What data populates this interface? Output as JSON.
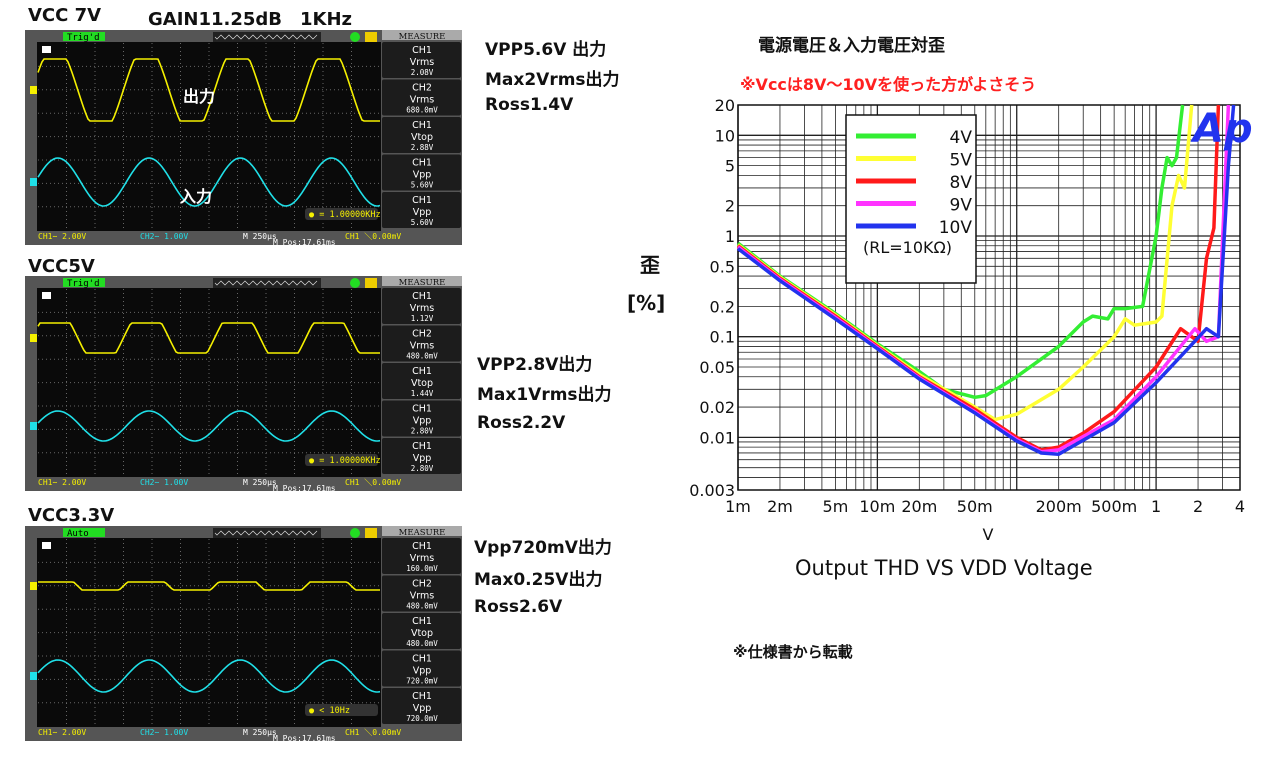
{
  "scopes": [
    {
      "heading": "VCC 7V",
      "heading2": "GAIN11.25dB　1KHz",
      "trigger": "Trig'd",
      "freq": "= 1.00000KHz",
      "out_label": "出力",
      "in_label": "入力",
      "measure_title": "MEASURE",
      "measures": [
        {
          "ch": "CH1",
          "type": "Vrms",
          "val": "2.08V"
        },
        {
          "ch": "CH2",
          "type": "Vrms",
          "val": "680.0mV"
        },
        {
          "ch": "CH1",
          "type": "Vtop",
          "val": "2.88V"
        },
        {
          "ch": "CH1",
          "type": "Vpp",
          "val": "5.60V"
        },
        {
          "ch": "CH1",
          "type": "Vpp",
          "val": "5.60V"
        }
      ],
      "ch1": "CH1∼ 2.00V",
      "ch2": "CH2∼ 1.00V",
      "time": "M 250μs",
      "mpos": "M Pos:17.61ms",
      "trig": "CH1 ＼0.00mV",
      "notes": [
        "VPP5.6V 出力",
        "Max2Vrms出力",
        "Ross1.4V"
      ]
    },
    {
      "heading": "VCC5V",
      "trigger": "Trig'd",
      "freq": "= 1.00000KHz",
      "measure_title": "MEASURE",
      "measures": [
        {
          "ch": "CH1",
          "type": "Vrms",
          "val": "1.12V"
        },
        {
          "ch": "CH2",
          "type": "Vrms",
          "val": "480.0mV"
        },
        {
          "ch": "CH1",
          "type": "Vtop",
          "val": "1.44V"
        },
        {
          "ch": "CH1",
          "type": "Vpp",
          "val": "2.80V"
        },
        {
          "ch": "CH1",
          "type": "Vpp",
          "val": "2.80V"
        }
      ],
      "ch1": "CH1∼ 2.00V",
      "ch2": "CH2∼ 1.00V",
      "time": "M 250μs",
      "mpos": "M Pos:17.61ms",
      "trig": "CH1 ＼0.00mV",
      "notes": [
        "VPP2.8V出力",
        "Max1Vrms出力",
        "Ross2.2V"
      ]
    },
    {
      "heading": "VCC3.3V",
      "trigger": "Auto",
      "freq": "< 10Hz",
      "measure_title": "MEASURE",
      "measures": [
        {
          "ch": "CH1",
          "type": "Vrms",
          "val": "160.0mV"
        },
        {
          "ch": "CH2",
          "type": "Vrms",
          "val": "480.0mV"
        },
        {
          "ch": "CH1",
          "type": "Vtop",
          "val": "480.0mV"
        },
        {
          "ch": "CH1",
          "type": "Vpp",
          "val": "720.0mV"
        },
        {
          "ch": "CH1",
          "type": "Vpp",
          "val": "720.0mV"
        }
      ],
      "ch1": "CH1∼ 2.00V",
      "ch2": "CH2∼ 1.00V",
      "time": "M 250μs",
      "mpos": "M Pos:17.61ms",
      "trig": "CH1 ＼0.00mV",
      "notes": [
        "Vpp720mV出力",
        "Max0.25V出力",
        "Ross2.6V"
      ]
    }
  ],
  "colors": {
    "ch1": "#f5f000",
    "ch2": "#20e0e8",
    "scope_bg": "#0a0a0a",
    "note_red": "#ff2020"
  },
  "chart_data": {
    "type": "line",
    "title": "電源電圧＆入力電圧対歪",
    "note": "※Vccは8V〜10Vを使った方がよさそう",
    "subtitle": "Output THD VS VDD Voltage",
    "xlabel": "V",
    "ylabel": "歪",
    "ylabel_unit": "[%]",
    "x_scale": "log",
    "y_scale": "log",
    "xlim": [
      0.001,
      4
    ],
    "ylim": [
      0.003,
      20
    ],
    "grid": true,
    "legend_placement": "top-left",
    "legend_note": "(RL=10KΩ)",
    "logo": "Ap",
    "source": "※仕様書から転載",
    "x_ticks": [
      {
        "v": 0.001,
        "t": "1m"
      },
      {
        "v": 0.002,
        "t": "2m"
      },
      {
        "v": 0.005,
        "t": "5m"
      },
      {
        "v": 0.01,
        "t": "10m"
      },
      {
        "v": 0.02,
        "t": "20m"
      },
      {
        "v": 0.05,
        "t": "50m"
      },
      {
        "v": 0.2,
        "t": "200m"
      },
      {
        "v": 0.5,
        "t": "500m"
      },
      {
        "v": 1,
        "t": "1"
      },
      {
        "v": 2,
        "t": "2"
      },
      {
        "v": 4,
        "t": "4"
      }
    ],
    "y_ticks": [
      {
        "v": 20,
        "t": "20"
      },
      {
        "v": 10,
        "t": "10"
      },
      {
        "v": 5,
        "t": "5"
      },
      {
        "v": 2,
        "t": "2"
      },
      {
        "v": 1,
        "t": "1"
      },
      {
        "v": 0.5,
        "t": "0.5"
      },
      {
        "v": 0.2,
        "t": "0.2"
      },
      {
        "v": 0.1,
        "t": "0.1"
      },
      {
        "v": 0.05,
        "t": "0.05"
      },
      {
        "v": 0.02,
        "t": "0.02"
      },
      {
        "v": 0.01,
        "t": "0.01"
      },
      {
        "v": 0.003,
        "t": "0.003"
      }
    ],
    "series": [
      {
        "name": "4V",
        "color": "#33ee33",
        "points": [
          [
            0.001,
            0.85
          ],
          [
            0.002,
            0.4
          ],
          [
            0.005,
            0.17
          ],
          [
            0.01,
            0.085
          ],
          [
            0.02,
            0.045
          ],
          [
            0.03,
            0.03
          ],
          [
            0.05,
            0.025
          ],
          [
            0.06,
            0.026
          ],
          [
            0.1,
            0.04
          ],
          [
            0.2,
            0.08
          ],
          [
            0.3,
            0.14
          ],
          [
            0.35,
            0.16
          ],
          [
            0.45,
            0.15
          ],
          [
            0.5,
            0.19
          ],
          [
            0.6,
            0.19
          ],
          [
            0.8,
            0.2
          ],
          [
            1.0,
            1.0
          ],
          [
            1.1,
            3
          ],
          [
            1.2,
            6
          ],
          [
            1.3,
            5
          ],
          [
            1.4,
            6
          ],
          [
            1.55,
            20
          ]
        ]
      },
      {
        "name": "5V",
        "color": "#ffff33",
        "points": [
          [
            0.001,
            0.82
          ],
          [
            0.002,
            0.39
          ],
          [
            0.005,
            0.165
          ],
          [
            0.01,
            0.082
          ],
          [
            0.02,
            0.042
          ],
          [
            0.05,
            0.02
          ],
          [
            0.07,
            0.015
          ],
          [
            0.1,
            0.017
          ],
          [
            0.2,
            0.03
          ],
          [
            0.3,
            0.05
          ],
          [
            0.5,
            0.1
          ],
          [
            0.6,
            0.15
          ],
          [
            0.7,
            0.13
          ],
          [
            1.0,
            0.14
          ],
          [
            1.1,
            0.16
          ],
          [
            1.3,
            2
          ],
          [
            1.45,
            4
          ],
          [
            1.6,
            3
          ],
          [
            1.8,
            20
          ]
        ]
      },
      {
        "name": "8V",
        "color": "#ff1a1a",
        "points": [
          [
            0.001,
            0.8
          ],
          [
            0.002,
            0.38
          ],
          [
            0.005,
            0.16
          ],
          [
            0.01,
            0.08
          ],
          [
            0.02,
            0.04
          ],
          [
            0.05,
            0.019
          ],
          [
            0.1,
            0.01
          ],
          [
            0.15,
            0.0075
          ],
          [
            0.2,
            0.008
          ],
          [
            0.3,
            0.011
          ],
          [
            0.5,
            0.018
          ],
          [
            1,
            0.05
          ],
          [
            1.5,
            0.12
          ],
          [
            2,
            0.09
          ],
          [
            2.3,
            0.6
          ],
          [
            2.6,
            1.2
          ],
          [
            2.8,
            20
          ]
        ]
      },
      {
        "name": "9V",
        "color": "#ff33ff",
        "points": [
          [
            0.001,
            0.78
          ],
          [
            0.002,
            0.37
          ],
          [
            0.005,
            0.155
          ],
          [
            0.01,
            0.078
          ],
          [
            0.02,
            0.039
          ],
          [
            0.05,
            0.018
          ],
          [
            0.1,
            0.0095
          ],
          [
            0.15,
            0.0072
          ],
          [
            0.2,
            0.0075
          ],
          [
            0.5,
            0.015
          ],
          [
            1,
            0.04
          ],
          [
            1.9,
            0.12
          ],
          [
            2.3,
            0.09
          ],
          [
            2.8,
            0.1
          ],
          [
            3.3,
            20
          ]
        ]
      },
      {
        "name": "10V",
        "color": "#2233ee",
        "points": [
          [
            0.001,
            0.75
          ],
          [
            0.002,
            0.36
          ],
          [
            0.005,
            0.15
          ],
          [
            0.01,
            0.076
          ],
          [
            0.02,
            0.038
          ],
          [
            0.05,
            0.0175
          ],
          [
            0.1,
            0.0092
          ],
          [
            0.15,
            0.007
          ],
          [
            0.2,
            0.0068
          ],
          [
            0.5,
            0.014
          ],
          [
            1,
            0.035
          ],
          [
            1.6,
            0.07
          ],
          [
            2.3,
            0.12
          ],
          [
            2.8,
            0.1
          ],
          [
            3.3,
            5
          ],
          [
            3.6,
            20
          ]
        ]
      }
    ]
  }
}
